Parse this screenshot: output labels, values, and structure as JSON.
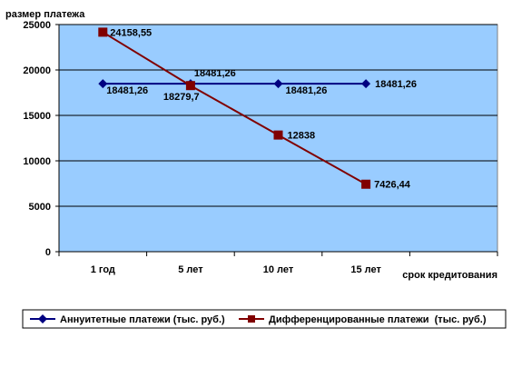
{
  "chart_data": {
    "type": "line",
    "ylabel": "размер платежа",
    "xlabel": "срок кредитования",
    "categories": [
      "1 год",
      "5 лет",
      "10 лет",
      "15 лет"
    ],
    "ylim": [
      0,
      25000
    ],
    "yticks": [
      "0",
      "5000",
      "10000",
      "15000",
      "20000",
      "25000"
    ],
    "ytick_values": [
      0,
      5000,
      10000,
      15000,
      20000,
      25000
    ],
    "grid": true,
    "legend_placement": "bottom",
    "plot_background": "#99CCFF",
    "series": [
      {
        "name": "Аннуитетные платежи (тыс. руб.)",
        "values": [
          18481.26,
          18481.26,
          18481.26,
          18481.26
        ],
        "labels": [
          "18481,26",
          "18481,26",
          "18481,26",
          "18481,26"
        ],
        "color": "#000080",
        "marker": "diamond"
      },
      {
        "name": "Дифференцированные платежи  (тыс. руб.)",
        "values": [
          24158.55,
          18279.7,
          12838,
          7426.44
        ],
        "labels": [
          "24158,55",
          "18279,7",
          "12838",
          "7426,44"
        ],
        "color": "#800000",
        "marker": "square"
      }
    ]
  }
}
